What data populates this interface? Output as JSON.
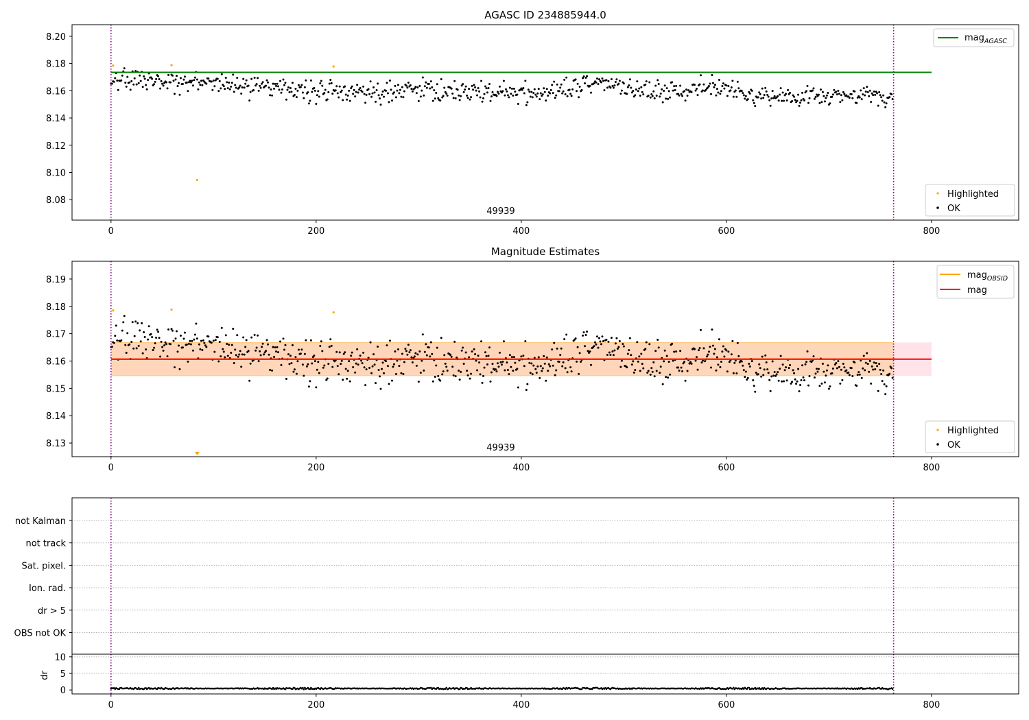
{
  "chart_data": [
    {
      "type": "scatter",
      "title": "AGASC ID 234885944.0",
      "xlim": [
        -38,
        885
      ],
      "ylim": [
        8.065,
        8.2085
      ],
      "xticks": [
        0,
        200,
        400,
        600,
        800
      ],
      "yticks": [
        8.08,
        8.1,
        8.12,
        8.14,
        8.16,
        8.18,
        8.2
      ],
      "ytick_labels": [
        "8.08",
        "8.10",
        "8.12",
        "8.14",
        "8.16",
        "8.18",
        "8.20"
      ],
      "obsid_label": "49939",
      "obsid_label_x": 380,
      "obs_bounds": [
        0,
        763
      ],
      "hline": {
        "value": 8.1735,
        "x_range": [
          0,
          800
        ],
        "color": "#008000"
      },
      "legend_line": {
        "label_main": "mag",
        "label_sub": "AGASC",
        "color": "#008000"
      },
      "legend_points": [
        {
          "name": "Highlighted",
          "color": "#ffa500"
        },
        {
          "name": "OK",
          "color": "#000000"
        }
      ],
      "highlighted": [
        [
          2,
          8.1785
        ],
        [
          59,
          8.1788
        ],
        [
          84,
          8.0945
        ],
        [
          217,
          8.1778
        ]
      ],
      "ok_series": {
        "n": 763,
        "segments": [
          [
            0,
            8.168
          ],
          [
            30,
            8.168
          ],
          [
            100,
            8.165
          ],
          [
            170,
            8.16
          ],
          [
            300,
            8.16
          ],
          [
            420,
            8.158
          ],
          [
            470,
            8.166
          ],
          [
            520,
            8.16
          ],
          [
            560,
            8.16
          ],
          [
            580,
            8.165
          ],
          [
            620,
            8.157
          ],
          [
            763,
            8.156
          ]
        ],
        "spread": 0.0055,
        "seed": 1
      }
    },
    {
      "type": "scatter",
      "title": "Magnitude Estimates",
      "xlim": [
        -38,
        885
      ],
      "ylim": [
        8.125,
        8.1965
      ],
      "xticks": [
        0,
        200,
        400,
        600,
        800
      ],
      "yticks": [
        8.13,
        8.14,
        8.15,
        8.16,
        8.17,
        8.18,
        8.19
      ],
      "ytick_labels": [
        "8.13",
        "8.14",
        "8.15",
        "8.16",
        "8.17",
        "8.18",
        "8.19"
      ],
      "obsid_label": "49939",
      "obsid_label_x": 380,
      "obs_bounds": [
        0,
        763
      ],
      "mag": {
        "value": 8.1607,
        "x_range": [
          0,
          800
        ],
        "color": "#ff0000"
      },
      "mag_band": {
        "low": 8.1546,
        "high": 8.1668,
        "x_range": [
          0,
          800
        ],
        "color": "#ffc0cb"
      },
      "obsid_band": {
        "low": 8.1546,
        "high": 8.1668,
        "x_range": [
          0,
          763
        ],
        "color": "#ffa500"
      },
      "obsid_mag": {
        "value": 8.1607,
        "color": "#ffa500"
      },
      "legend_lines": [
        {
          "label_main": "mag",
          "label_sub": "OBSID",
          "color": "#ffa500"
        },
        {
          "label_main": "mag",
          "label_sub": "",
          "color": "#ff0000"
        }
      ],
      "legend_points": [
        {
          "name": "Highlighted",
          "color": "#ffa500"
        },
        {
          "name": "OK",
          "color": "#000000"
        }
      ],
      "highlighted": [
        [
          2,
          8.1785
        ],
        [
          59,
          8.1788
        ],
        [
          217,
          8.1778
        ]
      ],
      "off_scale_marker": {
        "x": 84,
        "color": "#ffa500"
      },
      "ok_series": {
        "n": 763,
        "segments": [
          [
            0,
            8.168
          ],
          [
            30,
            8.168
          ],
          [
            100,
            8.165
          ],
          [
            170,
            8.16
          ],
          [
            300,
            8.16
          ],
          [
            420,
            8.158
          ],
          [
            470,
            8.166
          ],
          [
            520,
            8.16
          ],
          [
            560,
            8.16
          ],
          [
            580,
            8.165
          ],
          [
            620,
            8.157
          ],
          [
            763,
            8.156
          ]
        ],
        "spread": 0.0055,
        "seed": 1
      }
    },
    {
      "type": "scatter",
      "xlim": [
        -38,
        885
      ],
      "obs_bounds": [
        0,
        763
      ],
      "flag_rows": [
        "not Kalman",
        "not track",
        "Sat. pixel.",
        "Ion. rad.",
        "dr > 5",
        "OBS not OK"
      ]
    },
    {
      "type": "scatter",
      "ylabel": "dr",
      "xlim": [
        -38,
        885
      ],
      "ylim": [
        -1.2,
        10.8
      ],
      "xticks": [
        0,
        200,
        400,
        600,
        800
      ],
      "yticks": [
        0,
        5,
        10
      ],
      "ytick_labels": [
        "0",
        "5",
        "10"
      ],
      "obs_bounds": [
        0,
        763
      ],
      "dr_series": {
        "n": 763,
        "mean": 0.45,
        "amplitude": 0.25,
        "seed": 7
      }
    }
  ]
}
